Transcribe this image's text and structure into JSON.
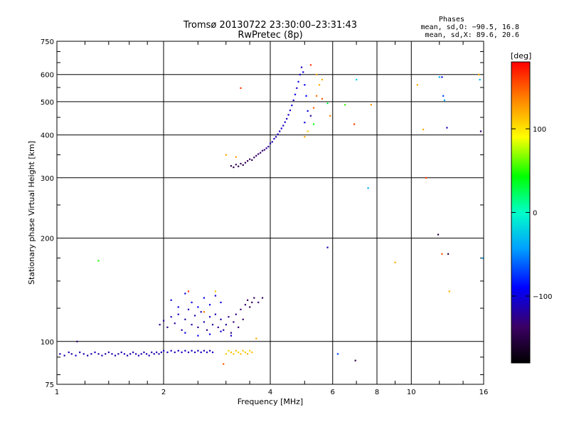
{
  "chart_data": {
    "type": "scatter",
    "title": "Tromsø 20130722 23:30:00–23:31:43",
    "subtitle": "RwPretec (8p)",
    "xlabel": "Frequency [MHz]",
    "ylabel": "Stationary phase Virtual Height [km]",
    "x_scale": "log",
    "y_scale": "log",
    "xlim": [
      1,
      16
    ],
    "ylim": [
      75,
      750
    ],
    "x_ticks": [
      1,
      2,
      4,
      6,
      8,
      10,
      16
    ],
    "x_tick_labels": [
      "1",
      "2",
      "4",
      "6",
      "8",
      "10",
      "16"
    ],
    "y_ticks": [
      75,
      100,
      200,
      300,
      400,
      500,
      600,
      750
    ],
    "y_tick_labels": [
      "75",
      "100",
      "200",
      "300",
      "400",
      "500",
      "600",
      "750"
    ],
    "grid": true,
    "stats": {
      "title": "Phases",
      "o_mode": "mean, sd,O: −90.5, 16.8",
      "x_mode": "mean, sd,X:  89.6, 20.6"
    },
    "colorbar": {
      "label": "[deg]",
      "min": -180,
      "max": 180,
      "tick_values": [
        -100,
        0,
        100
      ],
      "tick_labels": [
        "−100",
        "0",
        "100"
      ]
    },
    "series": [
      {
        "points": [
          [
            1.02,
            92,
            -115
          ],
          [
            1.05,
            91,
            -110
          ],
          [
            1.08,
            93,
            -112
          ],
          [
            1.1,
            92,
            -118
          ],
          [
            1.13,
            91,
            -108
          ],
          [
            1.16,
            93,
            -114
          ],
          [
            1.19,
            92,
            -110
          ],
          [
            1.22,
            91,
            -116
          ],
          [
            1.25,
            92,
            -112
          ],
          [
            1.28,
            93,
            -109
          ],
          [
            1.31,
            92,
            -115
          ],
          [
            1.34,
            91,
            -111
          ],
          [
            1.37,
            92,
            -117
          ],
          [
            1.4,
            93,
            -113
          ],
          [
            1.43,
            92,
            -110
          ],
          [
            1.46,
            91,
            -114
          ],
          [
            1.49,
            92,
            -116
          ],
          [
            1.52,
            93,
            -112
          ],
          [
            1.55,
            92,
            -108
          ],
          [
            1.58,
            91,
            -115
          ],
          [
            1.61,
            92,
            -111
          ],
          [
            1.64,
            93,
            -113
          ],
          [
            1.67,
            92,
            -117
          ],
          [
            1.7,
            91,
            -110
          ],
          [
            1.73,
            92,
            -112
          ],
          [
            1.76,
            93,
            -116
          ],
          [
            1.79,
            92,
            -114
          ],
          [
            1.82,
            91,
            -109
          ],
          [
            1.85,
            93,
            -113
          ],
          [
            1.88,
            92,
            -115
          ],
          [
            1.91,
            93,
            -110
          ],
          [
            1.94,
            92,
            -118
          ],
          [
            1.97,
            93,
            -112
          ],
          [
            2.0,
            94,
            -105
          ],
          [
            2.05,
            93,
            -110
          ],
          [
            2.1,
            94,
            -108
          ],
          [
            2.15,
            93,
            -112
          ],
          [
            2.2,
            94,
            -106
          ],
          [
            2.25,
            93,
            -110
          ],
          [
            2.3,
            94,
            -104
          ],
          [
            2.35,
            93,
            -112
          ],
          [
            2.4,
            94,
            -108
          ],
          [
            2.45,
            93,
            -110
          ],
          [
            2.5,
            94,
            -106
          ],
          [
            2.55,
            93,
            -109
          ],
          [
            2.6,
            94,
            -112
          ],
          [
            2.65,
            93,
            -107
          ],
          [
            2.7,
            94,
            -110
          ],
          [
            2.75,
            93,
            -105
          ]
        ]
      },
      {
        "points": [
          [
            1.95,
            112,
            -120
          ],
          [
            2.0,
            115,
            -118
          ],
          [
            2.05,
            110,
            -125
          ],
          [
            2.1,
            118,
            -115
          ],
          [
            2.15,
            113,
            -120
          ],
          [
            2.2,
            120,
            -110
          ],
          [
            2.25,
            108,
            -122
          ],
          [
            2.3,
            116,
            -118
          ],
          [
            2.35,
            124,
            -112
          ],
          [
            2.4,
            112,
            -120
          ],
          [
            2.45,
            119,
            -115
          ],
          [
            2.5,
            110,
            -125
          ],
          [
            2.55,
            122,
            -110
          ],
          [
            2.6,
            114,
            -118
          ],
          [
            2.65,
            108,
            -126
          ],
          [
            2.7,
            118,
            -112
          ],
          [
            2.75,
            112,
            -120
          ],
          [
            2.8,
            120,
            -115
          ],
          [
            2.85,
            110,
            -125
          ],
          [
            2.9,
            116,
            -118
          ],
          [
            2.95,
            108,
            -122
          ],
          [
            3.0,
            112,
            -120
          ],
          [
            3.05,
            118,
            -126
          ],
          [
            3.1,
            106,
            -128
          ],
          [
            3.15,
            114,
            -130
          ],
          [
            3.2,
            120,
            -126
          ],
          [
            3.25,
            110,
            -132
          ],
          [
            3.3,
            124,
            -130
          ],
          [
            3.35,
            116,
            -134
          ],
          [
            3.4,
            128,
            -130
          ],
          [
            3.45,
            132,
            -136
          ],
          [
            3.5,
            126,
            -140
          ],
          [
            3.55,
            130,
            -138
          ],
          [
            3.6,
            134,
            -140
          ],
          [
            3.7,
            130,
            -135
          ],
          [
            3.8,
            134,
            -140
          ],
          [
            2.1,
            132,
            -100
          ],
          [
            2.2,
            126,
            -98
          ],
          [
            2.3,
            138,
            -102
          ],
          [
            2.4,
            130,
            -96
          ],
          [
            2.5,
            126,
            -95
          ],
          [
            2.6,
            134,
            -100
          ],
          [
            2.7,
            128,
            -98
          ],
          [
            2.8,
            136,
            -104
          ],
          [
            2.9,
            130,
            -102
          ],
          [
            2.3,
            106,
            -95
          ],
          [
            2.5,
            104,
            -92
          ],
          [
            2.7,
            105,
            -94
          ],
          [
            2.9,
            107,
            -98
          ],
          [
            3.1,
            104,
            -100
          ],
          [
            2.35,
            140,
            160
          ],
          [
            2.6,
            122,
            140
          ],
          [
            2.8,
            140,
            110
          ]
        ]
      },
      {
        "points": [
          [
            3.0,
            92,
            110
          ],
          [
            3.05,
            94,
            105
          ],
          [
            3.1,
            93,
            115
          ],
          [
            3.15,
            92,
            108
          ],
          [
            3.2,
            94,
            112
          ],
          [
            3.25,
            93,
            106
          ],
          [
            3.3,
            92,
            114
          ],
          [
            3.35,
            94,
            110
          ],
          [
            3.4,
            93,
            108
          ],
          [
            3.45,
            92,
            115
          ],
          [
            3.5,
            94,
            105
          ],
          [
            3.55,
            93,
            112
          ],
          [
            2.95,
            86,
            150
          ],
          [
            3.65,
            102,
            120
          ]
        ]
      },
      {
        "points": [
          [
            3.1,
            325,
            -145
          ],
          [
            3.15,
            322,
            -150
          ],
          [
            3.2,
            328,
            -140
          ],
          [
            3.25,
            324,
            -148
          ],
          [
            3.3,
            330,
            -142
          ],
          [
            3.35,
            327,
            -150
          ],
          [
            3.4,
            332,
            -140
          ],
          [
            3.45,
            336,
            -146
          ],
          [
            3.5,
            340,
            -138
          ],
          [
            3.55,
            338,
            -148
          ],
          [
            3.6,
            344,
            -140
          ],
          [
            3.65,
            348,
            -135
          ],
          [
            3.7,
            352,
            -140
          ],
          [
            3.75,
            355,
            -132
          ],
          [
            3.8,
            360,
            -128
          ],
          [
            3.85,
            362,
            -130
          ],
          [
            3.9,
            366,
            -125
          ],
          [
            3.95,
            370,
            -120
          ],
          [
            4.0,
            378,
            -115
          ],
          [
            4.05,
            382,
            -118
          ],
          [
            4.1,
            390,
            -110
          ],
          [
            4.15,
            395,
            -112
          ],
          [
            4.2,
            402,
            -108
          ],
          [
            4.25,
            410,
            -112
          ],
          [
            4.3,
            418,
            -105
          ],
          [
            4.35,
            426,
            -110
          ],
          [
            4.4,
            436,
            -104
          ],
          [
            4.45,
            446,
            -110
          ],
          [
            4.5,
            458,
            -102
          ],
          [
            4.55,
            472,
            -108
          ],
          [
            4.6,
            488,
            -102
          ],
          [
            4.65,
            505,
            -106
          ],
          [
            4.7,
            525,
            -98
          ],
          [
            4.75,
            548,
            -104
          ],
          [
            4.8,
            572,
            -96
          ],
          [
            4.85,
            600,
            -102
          ],
          [
            4.9,
            630,
            -108
          ],
          [
            4.95,
            610,
            -100
          ],
          [
            5.0,
            560,
            -95
          ],
          [
            5.05,
            520,
            -90
          ],
          [
            5.1,
            470,
            -98
          ],
          [
            3.0,
            350,
            120
          ],
          [
            3.2,
            345,
            125
          ],
          [
            3.3,
            548,
            160
          ],
          [
            5.0,
            435,
            -98
          ],
          [
            5.2,
            455,
            -120
          ],
          [
            5.3,
            430,
            40
          ],
          [
            5.1,
            410,
            110
          ],
          [
            5.0,
            395,
            120
          ],
          [
            5.3,
            480,
            145
          ],
          [
            5.4,
            520,
            140
          ],
          [
            5.5,
            560,
            120
          ],
          [
            5.6,
            580,
            118
          ],
          [
            5.2,
            640,
            160
          ],
          [
            5.4,
            600,
            120
          ],
          [
            5.6,
            510,
            150
          ],
          [
            5.8,
            495,
            30
          ],
          [
            5.9,
            455,
            135
          ],
          [
            6.5,
            490,
            55
          ],
          [
            6.9,
            430,
            160
          ]
        ]
      },
      {
        "points": [
          [
            1.31,
            172,
            50
          ],
          [
            1.14,
            100,
            -130
          ],
          [
            5.8,
            188,
            -110
          ],
          [
            6.2,
            92,
            -70
          ],
          [
            6.95,
            88,
            -150
          ],
          [
            7.55,
            280,
            -40
          ],
          [
            7.0,
            580,
            -20
          ],
          [
            7.7,
            490,
            130
          ],
          [
            9.0,
            170,
            120
          ],
          [
            10.4,
            560,
            120
          ],
          [
            10.8,
            415,
            120
          ],
          [
            11.0,
            300,
            160
          ],
          [
            12.0,
            590,
            -40
          ],
          [
            12.2,
            590,
            -100
          ],
          [
            12.3,
            520,
            -70
          ],
          [
            12.4,
            505,
            -40
          ],
          [
            12.6,
            420,
            -110
          ],
          [
            11.9,
            205,
            -150
          ],
          [
            12.2,
            180,
            150
          ],
          [
            12.7,
            180,
            -150
          ],
          [
            12.8,
            140,
            120
          ],
          [
            15.5,
            600,
            120
          ],
          [
            15.6,
            580,
            -40
          ],
          [
            15.7,
            410,
            -140
          ],
          [
            15.9,
            175,
            -40
          ]
        ]
      }
    ]
  }
}
